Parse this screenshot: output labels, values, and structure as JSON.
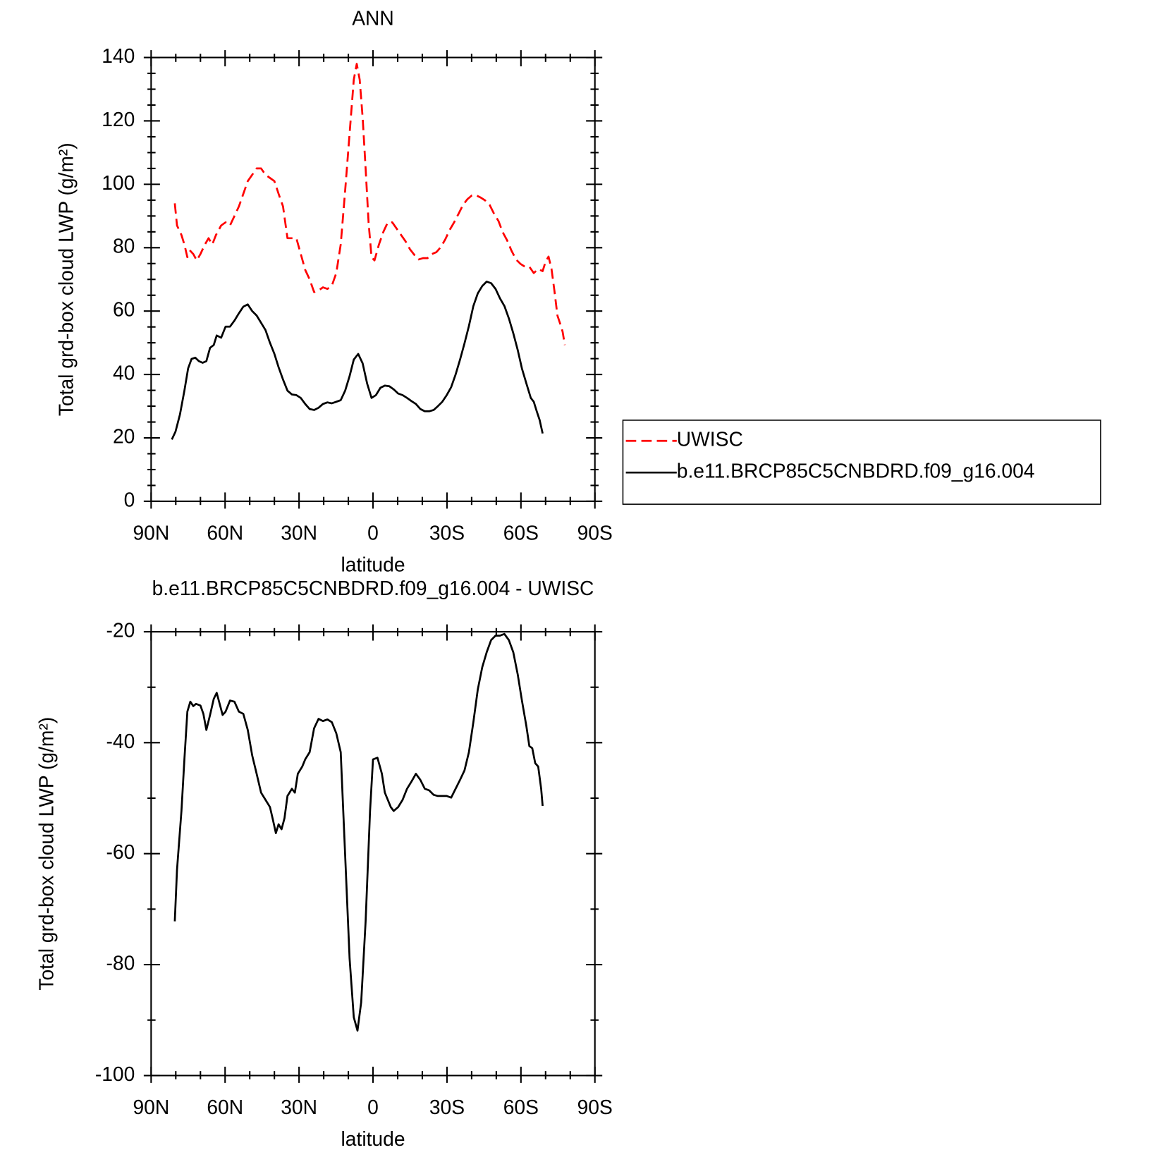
{
  "chart_data": [
    {
      "type": "line",
      "title": "ANN",
      "xlabel": "latitude",
      "ylabel": "Total grd-box cloud LWP (g/m²)",
      "xlim": [
        90,
        -90
      ],
      "xticks": [
        {
          "value": 90,
          "label": "90N"
        },
        {
          "value": 60,
          "label": "60N"
        },
        {
          "value": 30,
          "label": "30N"
        },
        0,
        {
          "value": -30,
          "label": "30S"
        },
        {
          "value": -60,
          "label": "60S"
        },
        {
          "value": -90,
          "label": "90S"
        }
      ],
      "ylim": [
        0,
        140
      ],
      "yticks": [
        0,
        20,
        40,
        60,
        80,
        100,
        120,
        140
      ],
      "legend": "right",
      "series": [
        {
          "name": "UWISC",
          "color": "#ff0000",
          "dashed": true,
          "x": [
            80.4,
            79.5,
            77.7,
            76.5,
            75.3,
            74.1,
            72.9,
            71.5,
            70,
            68.2,
            66.7,
            65.2,
            63.7,
            61.6,
            59.8,
            58,
            56.2,
            54.4,
            52.6,
            50.8,
            49,
            47.2,
            45.4,
            43.6,
            41.8,
            40,
            38.3,
            36.5,
            34.7,
            32.9,
            31.1,
            29.3,
            27.5,
            25.7,
            23.9,
            22.1,
            20.3,
            18.5,
            16.7,
            14.9,
            13.1,
            11.3,
            9.5,
            7.8,
            6.6,
            5.4,
            4.2,
            3.0,
            1.8,
            0.6,
            -0.6,
            -2.4,
            -4.2,
            -6,
            -7.8,
            -9.6,
            -11.4,
            -13.2,
            -15,
            -16.8,
            -18.5,
            -20.3,
            -22.1,
            -23.9,
            -25.7,
            -27.5,
            -29.3,
            -31.1,
            -32.9,
            -34.7,
            -36.5,
            -38.3,
            -40.1,
            -41.9,
            -43.7,
            -45.5,
            -47.3,
            -49.1,
            -50.9,
            -52.6,
            -54.4,
            -56.2,
            -58,
            -59.8,
            -61.6,
            -63.4,
            -65.2,
            -67,
            -68.8,
            -70,
            -71.2,
            -72.4,
            -73.6,
            -74.8,
            -76,
            -76.9,
            -77.8
          ],
          "values": [
            94,
            87,
            84,
            81,
            77,
            79,
            78,
            76,
            78,
            81,
            83,
            81,
            84,
            87,
            88,
            87,
            90,
            93,
            97,
            101,
            103,
            105,
            105,
            103,
            102,
            101,
            97,
            93,
            83,
            83,
            83,
            78,
            73,
            70,
            66,
            66.5,
            67.5,
            67,
            68,
            72,
            81,
            98,
            116,
            133,
            138,
            133,
            121,
            105,
            88,
            77,
            76,
            81,
            85,
            88,
            88,
            86,
            84,
            82,
            79.5,
            77.7,
            76.3,
            76.7,
            76.7,
            78,
            78.6,
            80.2,
            82.6,
            85.6,
            88,
            90.7,
            93.5,
            95.3,
            96.5,
            96.5,
            95.8,
            94.9,
            93.5,
            90.7,
            88.4,
            84.9,
            82.3,
            79,
            76.3,
            74.9,
            74,
            74,
            72,
            73.3,
            72.6,
            75.6,
            77.2,
            73.3,
            66.3,
            58.6,
            55.8,
            53.5,
            49.3
          ]
        },
        {
          "name": "b.e11.BRCP85C5CNBDRD.f09_g16.004",
          "color": "#000000",
          "dashed": false,
          "x": [
            81.6,
            80.1,
            78.3,
            76.5,
            75,
            73.6,
            72.1,
            70.6,
            69.1,
            67.6,
            66.1,
            64.6,
            63.4,
            61.6,
            59.8,
            58,
            56.2,
            54.4,
            52.6,
            50.8,
            49,
            47.2,
            45.4,
            43.6,
            41.8,
            40,
            38.3,
            36.5,
            34.7,
            32.9,
            31.1,
            29.3,
            27.5,
            25.7,
            23.9,
            22.1,
            20.3,
            18.5,
            16.7,
            14.9,
            13.1,
            11.3,
            9.5,
            7.8,
            6,
            4.2,
            2.4,
            0.6,
            -1.2,
            -3,
            -4.8,
            -6.6,
            -8.4,
            -10.2,
            -12,
            -13.8,
            -15.6,
            -17.4,
            -19.2,
            -21,
            -22.8,
            -24.6,
            -26.3,
            -28.1,
            -29.9,
            -31.7,
            -33.5,
            -35.3,
            -37.1,
            -38.9,
            -40.7,
            -42.5,
            -44.3,
            -46.1,
            -47.9,
            -49.7,
            -51.5,
            -53.3,
            -55.1,
            -56.9,
            -58.7,
            -60.4,
            -62.2,
            -64,
            -65.2,
            -66.4,
            -67.6,
            -68.8
          ],
          "values": [
            19.5,
            22,
            27.4,
            34.9,
            41.9,
            44.9,
            45.3,
            44.2,
            43.7,
            44.2,
            48.4,
            49.3,
            52.3,
            51.6,
            55.1,
            55.1,
            57,
            59.3,
            61.4,
            62.1,
            60,
            58.6,
            56.3,
            54,
            50,
            46.5,
            42.3,
            38.4,
            34.9,
            33.7,
            33.5,
            32.6,
            30.7,
            29.1,
            28.8,
            29.5,
            30.7,
            31.2,
            30.9,
            31.4,
            31.9,
            34.9,
            39.5,
            44.7,
            46.5,
            43.5,
            37.2,
            32.6,
            33.5,
            35.8,
            36.5,
            36.3,
            35.3,
            34,
            33.5,
            32.6,
            31.6,
            30.7,
            29.1,
            28.4,
            28.4,
            28.8,
            30,
            31.4,
            33.5,
            36,
            40,
            44.7,
            49.8,
            55.3,
            61.6,
            65.6,
            67.9,
            69.3,
            68.8,
            67,
            64,
            61.6,
            57.7,
            53,
            47.7,
            41.9,
            37.2,
            32.6,
            31.4,
            28.4,
            25.6,
            21.4
          ]
        }
      ]
    },
    {
      "type": "line",
      "title": "b.e11.BRCP85C5CNBDRD.f09_g16.004 - UWISC",
      "xlabel": "latitude",
      "ylabel": "Total grd-box cloud LWP (g/m²)",
      "xlim": [
        90,
        -90
      ],
      "xticks": [
        {
          "value": 90,
          "label": "90N"
        },
        {
          "value": 60,
          "label": "60N"
        },
        {
          "value": 30,
          "label": "30N"
        },
        0,
        {
          "value": -30,
          "label": "30S"
        },
        {
          "value": -60,
          "label": "60S"
        },
        {
          "value": -90,
          "label": "90S"
        }
      ],
      "ylim": [
        -100,
        -20
      ],
      "yticks": [
        -100,
        -80,
        -60,
        -40,
        -20
      ],
      "series": [
        {
          "color": "#000000",
          "dashed": false,
          "x": [
            80.4,
            79.5,
            77.7,
            76.5,
            75.3,
            74.1,
            72.9,
            71.8,
            70,
            68.8,
            67.6,
            66.1,
            64.6,
            63.4,
            62.2,
            61,
            59.8,
            58,
            56.2,
            54.4,
            52.6,
            50.8,
            49,
            47.2,
            45.4,
            43.6,
            41.8,
            40.6,
            39.4,
            38.3,
            37.1,
            35.9,
            34.7,
            32.9,
            31.7,
            30.5,
            28.7,
            27.5,
            25.7,
            23.9,
            22.1,
            20.3,
            18.5,
            16.7,
            14.9,
            13.1,
            11.3,
            9.5,
            7.8,
            6.3,
            4.8,
            3.0,
            1.2,
            0,
            -1.8,
            -3.6,
            -4.8,
            -6,
            -7.2,
            -8.4,
            -10.2,
            -12,
            -13.8,
            -15.6,
            -17.4,
            -19.2,
            -21,
            -22.8,
            -24.6,
            -26.3,
            -28.1,
            -29.9,
            -31.7,
            -33.5,
            -35.3,
            -37.1,
            -38.9,
            -40.7,
            -42.5,
            -44.3,
            -46.1,
            -47.9,
            -49.7,
            -51.5,
            -53.3,
            -55.1,
            -56.9,
            -58.7,
            -60.4,
            -62.2,
            -63.4,
            -64.6,
            -65.8,
            -67,
            -68.2,
            -68.8
          ],
          "values": [
            -72.2,
            -62.9,
            -52.3,
            -43,
            -34.4,
            -32.6,
            -33.4,
            -33,
            -33.3,
            -34.8,
            -37.7,
            -35,
            -32.1,
            -31,
            -33,
            -35,
            -34.4,
            -32.4,
            -32.6,
            -34.4,
            -34.8,
            -37.7,
            -42.3,
            -45.6,
            -49,
            -50.3,
            -51.6,
            -53.9,
            -56.3,
            -54.7,
            -55.6,
            -53.6,
            -49.6,
            -48.3,
            -49,
            -45.6,
            -44.3,
            -43,
            -41.7,
            -37.4,
            -35.7,
            -36.1,
            -35.8,
            -36.3,
            -38.3,
            -41.7,
            -60.3,
            -78.9,
            -89.5,
            -91.9,
            -86.8,
            -72.2,
            -52.3,
            -43,
            -42.7,
            -45.6,
            -49,
            -50.3,
            -51.6,
            -52.3,
            -51.6,
            -50.3,
            -48.3,
            -47,
            -45.6,
            -46.7,
            -48.3,
            -48.6,
            -49.4,
            -49.6,
            -49.6,
            -49.6,
            -49.9,
            -48.3,
            -46.7,
            -45,
            -41.7,
            -36.3,
            -30.4,
            -26.4,
            -23.7,
            -21.5,
            -20.7,
            -20.7,
            -20.4,
            -21.5,
            -23.7,
            -27.7,
            -32.4,
            -37,
            -40.6,
            -41,
            -43.7,
            -44.3,
            -48.3,
            -51.4
          ]
        }
      ]
    }
  ]
}
